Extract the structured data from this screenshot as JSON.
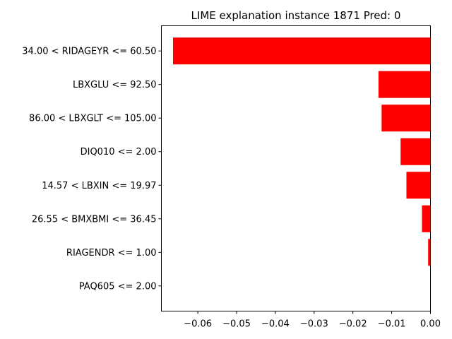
{
  "chart_data": {
    "type": "bar",
    "orientation": "horizontal",
    "title": "LIME explanation instance 1871 Pred: 0",
    "xlabel": "",
    "ylabel": "",
    "categories": [
      "34.00 < RIDAGEYR <= 60.50",
      "LBXGLU <= 92.50",
      "86.00 < LBXGLT <= 105.00",
      "DIQ010 <= 2.00",
      "14.57 < LBXIN <= 19.97",
      "26.55 < BMXBMI <= 36.45",
      "RIAGENDR <= 1.00",
      "PAQ605 <= 2.00"
    ],
    "values": [
      -0.0664,
      -0.0134,
      -0.0126,
      -0.0077,
      -0.0062,
      -0.0022,
      -0.0006,
      0.0
    ],
    "bar_color": "#ff0000",
    "xlim": [
      -0.0694,
      0.0
    ],
    "xticks": [
      -0.06,
      -0.05,
      -0.04,
      -0.03,
      -0.02,
      -0.01,
      0.0
    ],
    "xtick_labels": [
      "−0.06",
      "−0.05",
      "−0.04",
      "−0.03",
      "−0.02",
      "−0.01",
      "0.00"
    ],
    "grid": false,
    "legend": "none"
  }
}
